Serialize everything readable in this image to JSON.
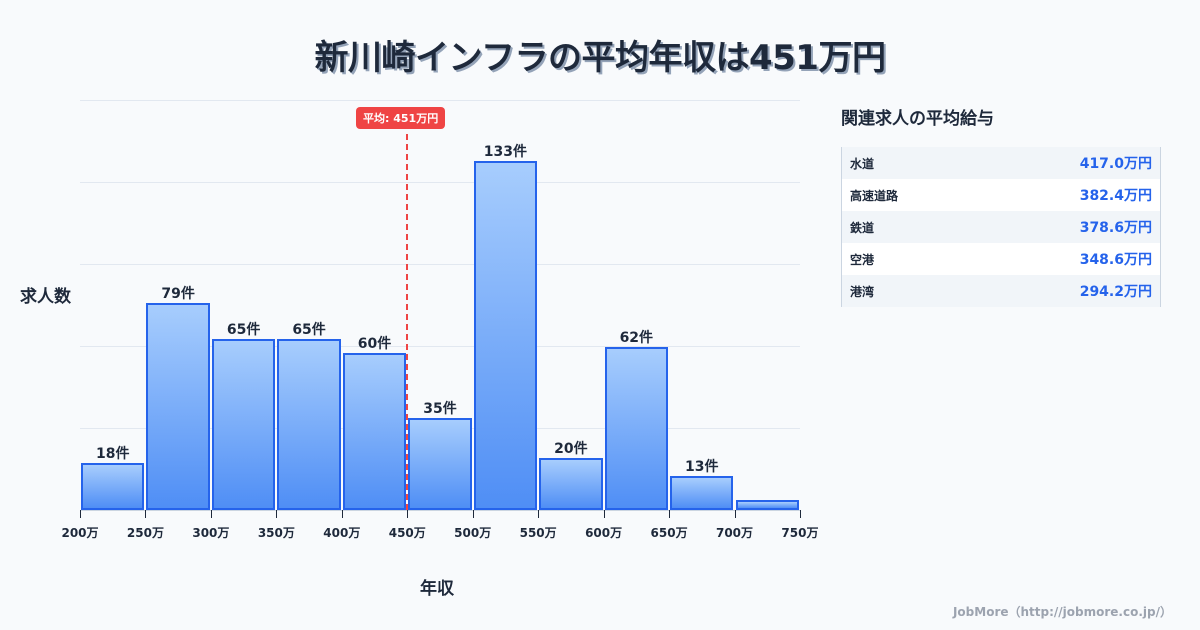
{
  "title": "新川崎インフラの平均年収は451万円",
  "chart": {
    "ylabel": "求人数",
    "xlabel": "年収",
    "mean_label": "平均: 451万円",
    "ticks": [
      "200万",
      "250万",
      "300万",
      "350万",
      "400万",
      "450万",
      "500万",
      "550万",
      "600万",
      "650万",
      "700万",
      "750万"
    ],
    "bar_labels": [
      "18件",
      "79件",
      "65件",
      "65件",
      "60件",
      "35件",
      "133件",
      "20件",
      "62件",
      "13件",
      ""
    ]
  },
  "sidebar": {
    "title": "関連求人の平均給与",
    "rows": [
      {
        "name": "水道",
        "value": "417.0万円"
      },
      {
        "name": "高速道路",
        "value": "382.4万円"
      },
      {
        "name": "鉄道",
        "value": "378.6万円"
      },
      {
        "name": "空港",
        "value": "348.6万円"
      },
      {
        "name": "港湾",
        "value": "294.2万円"
      }
    ]
  },
  "footer": "JobMore（http://jobmore.co.jp/）",
  "colors": {
    "bar": "#4f8ef5",
    "bar_border": "#2563eb",
    "mean": "#ef4444",
    "value": "#2563eb"
  },
  "chart_data": {
    "type": "bar",
    "title": "新川崎インフラの平均年収は451万円",
    "xlabel": "年収",
    "ylabel": "求人数",
    "categories": [
      "200-250万",
      "250-300万",
      "300-350万",
      "350-400万",
      "400-450万",
      "450-500万",
      "500-550万",
      "550-600万",
      "600-650万",
      "650-700万",
      "700-750万"
    ],
    "values": [
      18,
      79,
      65,
      65,
      60,
      35,
      133,
      20,
      62,
      13,
      4
    ],
    "x_ticks": [
      "200万",
      "250万",
      "300万",
      "350万",
      "400万",
      "450万",
      "500万",
      "550万",
      "600万",
      "650万",
      "700万",
      "750万"
    ],
    "annotations": [
      {
        "type": "vline",
        "x": 451,
        "label": "平均: 451万円"
      }
    ],
    "grid": true,
    "ylim": [
      0,
      156
    ]
  }
}
